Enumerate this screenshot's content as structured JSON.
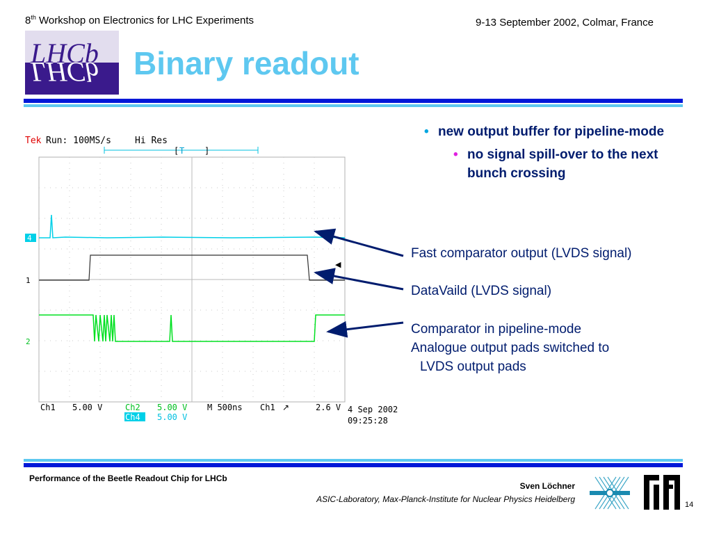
{
  "header": {
    "workshop_pre": "8",
    "workshop_sup": "th",
    "workshop_post": " Workshop on Electronics for LHC Experiments",
    "date_place": "9-13 September 2002, Colmar, France"
  },
  "logo": {
    "text": "LHCb",
    "bg_color": "#3a1a8c",
    "text_color": "#ffffff"
  },
  "title": "Binary readout",
  "colors": {
    "title": "#5ec8f0",
    "rule": "#0018d8",
    "bullet_text": "#001c6e",
    "bullet1_dot": "#00a6e0",
    "bullet2_dot": "#e020e0"
  },
  "bullets": {
    "level1": "new output buffer for pipeline-mode",
    "level2": "no signal spill-over to the next bunch crossing"
  },
  "annotations": {
    "fast_comparator": "Fast comparator output (LVDS signal)",
    "datavalid": "DataVaild (LVDS signal)",
    "comparator_line1": "Comparator in pipeline-mode",
    "comparator_line2": "Analogue output pads switched to",
    "comparator_line3": "LVDS output pads"
  },
  "scope": {
    "brand": "Tek",
    "run": "Run: 100MS/s",
    "mode": "Hi Res",
    "trigger_marker": "T",
    "ch4_marker": "4",
    "ch1_marker": "1",
    "ch2_marker": "2",
    "ch1_label": "Ch1",
    "ch1_scale": "5.00 V",
    "ch2_label": "Ch2",
    "ch2_scale": "5.00 V",
    "ch4_label": "Ch4",
    "ch4_scale": "5.00 V",
    "timebase": "M  500ns",
    "trig_ch": "Ch1",
    "trig_sym": "↗",
    "trig_level": "2.6 V",
    "date": "4 Sep 2002",
    "time": "09:25:28",
    "colors": {
      "ch4": "#00d0e8",
      "ch1": "#303030",
      "ch2": "#00e020",
      "brand": "#e00000"
    }
  },
  "footer": {
    "left": "Performance of the Beetle Readout Chip for LHCb",
    "author": "Sven Löchner",
    "institute": "ASIC-Laboratory, Max-Planck-Institute for Nuclear Physics Heidelberg",
    "page": "14"
  }
}
